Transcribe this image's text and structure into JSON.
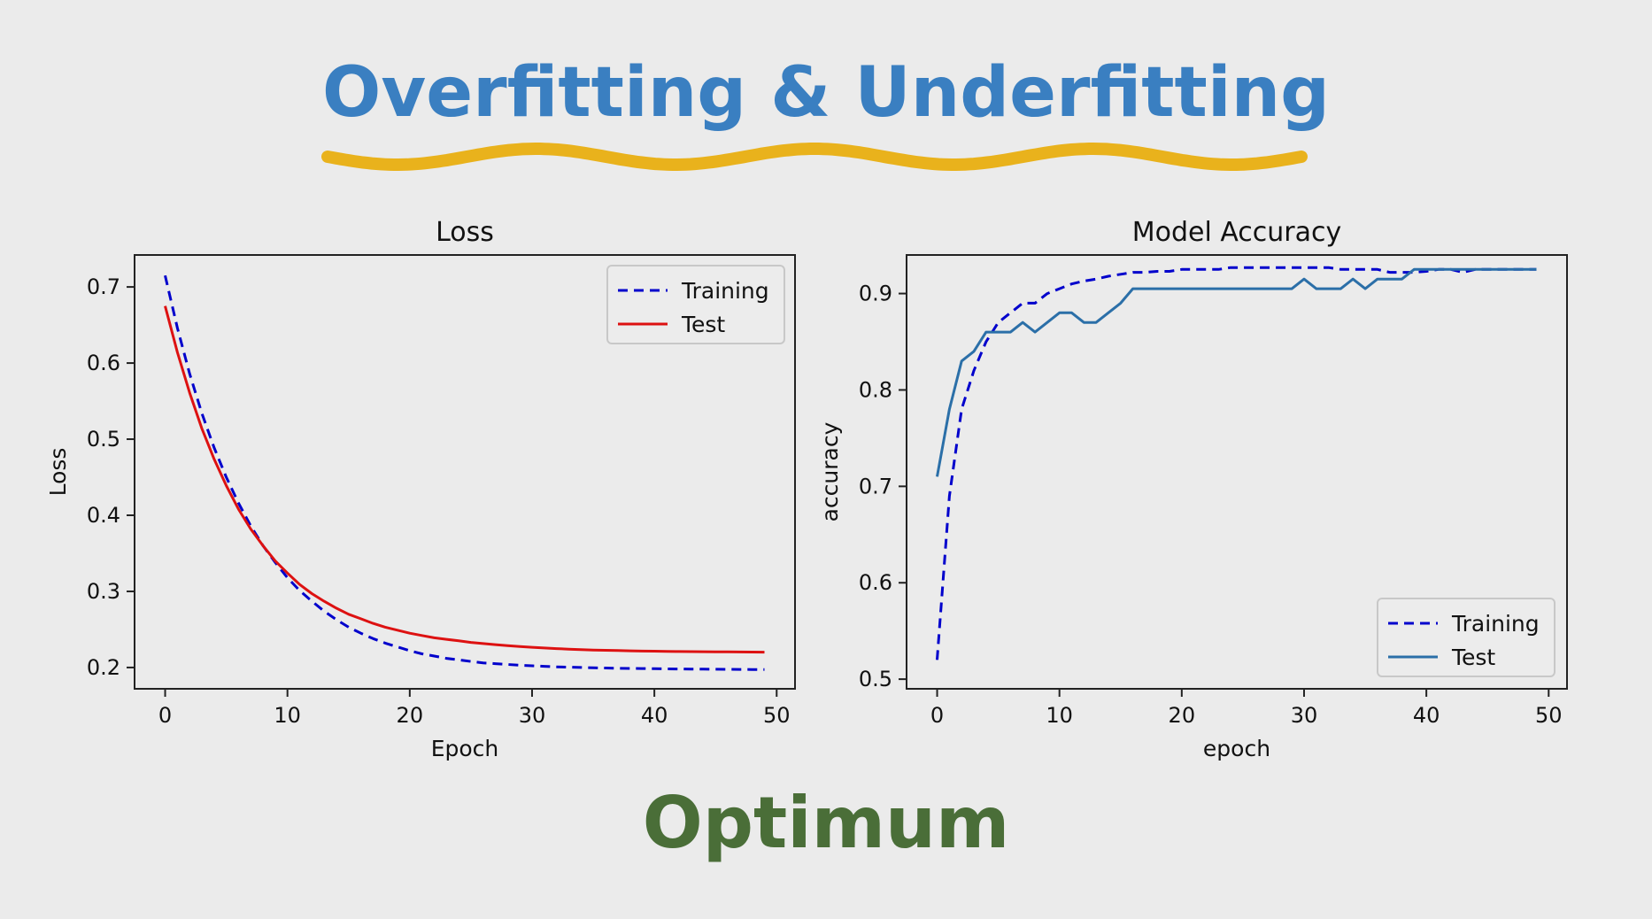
{
  "slide": {
    "title": "Overfitting & Underfitting",
    "footer": "Optimum",
    "colors": {
      "title": "#3a7fc1",
      "wave": "#e9b21c",
      "footer": "#4a6e38",
      "background": "#ebebeb"
    }
  },
  "chart_data": [
    {
      "type": "line",
      "title": "Loss",
      "xlabel": "Epoch",
      "ylabel": "Loss",
      "xlim": [
        -2.5,
        51.5
      ],
      "ylim": [
        0.172,
        0.742
      ],
      "xticks": [
        0,
        10,
        20,
        30,
        40,
        50
      ],
      "yticks": [
        0.2,
        0.3,
        0.4,
        0.5,
        0.6,
        0.7
      ],
      "grid": false,
      "legend": "top-right",
      "x": [
        0,
        1,
        2,
        3,
        4,
        5,
        6,
        7,
        8,
        9,
        10,
        11,
        12,
        13,
        14,
        15,
        16,
        17,
        18,
        19,
        20,
        21,
        22,
        23,
        24,
        25,
        26,
        27,
        28,
        29,
        30,
        31,
        32,
        33,
        34,
        35,
        36,
        37,
        38,
        39,
        40,
        41,
        42,
        43,
        44,
        45,
        46,
        47,
        48,
        49
      ],
      "series": [
        {
          "name": "Training",
          "style": "dashed",
          "color": "#0000cc",
          "values": [
            0.715,
            0.646,
            0.586,
            0.534,
            0.489,
            0.45,
            0.416,
            0.386,
            0.36,
            0.338,
            0.318,
            0.301,
            0.287,
            0.274,
            0.263,
            0.253,
            0.245,
            0.238,
            0.232,
            0.227,
            0.222,
            0.218,
            0.215,
            0.212,
            0.21,
            0.208,
            0.206,
            0.205,
            0.204,
            0.203,
            0.2022,
            0.2015,
            0.2009,
            0.2004,
            0.2,
            0.1996,
            0.1993,
            0.199,
            0.1988,
            0.1986,
            0.1984,
            0.1982,
            0.1981,
            0.1979,
            0.1978,
            0.1977,
            0.1976,
            0.1975,
            0.1974,
            0.1973
          ]
        },
        {
          "name": "Test",
          "style": "solid",
          "color": "#dd1111",
          "values": [
            0.675,
            0.614,
            0.561,
            0.514,
            0.474,
            0.439,
            0.408,
            0.382,
            0.36,
            0.34,
            0.324,
            0.309,
            0.297,
            0.287,
            0.278,
            0.27,
            0.264,
            0.258,
            0.253,
            0.249,
            0.245,
            0.242,
            0.239,
            0.237,
            0.235,
            0.233,
            0.2315,
            0.23,
            0.2287,
            0.2275,
            0.2265,
            0.2256,
            0.2248,
            0.2241,
            0.2235,
            0.223,
            0.2226,
            0.2222,
            0.2219,
            0.2216,
            0.2214,
            0.2212,
            0.221,
            0.2208,
            0.2207,
            0.2206,
            0.2205,
            0.2204,
            0.2203,
            0.2202
          ]
        }
      ]
    },
    {
      "type": "line",
      "title": "Model Accuracy",
      "xlabel": "epoch",
      "ylabel": "accuracy",
      "xlim": [
        -2.5,
        51.5
      ],
      "ylim": [
        0.49,
        0.94
      ],
      "xticks": [
        0,
        10,
        20,
        30,
        40,
        50
      ],
      "yticks": [
        0.5,
        0.6,
        0.7,
        0.8,
        0.9
      ],
      "grid": false,
      "legend": "bottom-right",
      "x": [
        0,
        1,
        2,
        3,
        4,
        5,
        6,
        7,
        8,
        9,
        10,
        11,
        12,
        13,
        14,
        15,
        16,
        17,
        18,
        19,
        20,
        21,
        22,
        23,
        24,
        25,
        26,
        27,
        28,
        29,
        30,
        31,
        32,
        33,
        34,
        35,
        36,
        37,
        38,
        39,
        40,
        41,
        42,
        43,
        44,
        45,
        46,
        47,
        48,
        49
      ],
      "series": [
        {
          "name": "Training",
          "style": "dashed",
          "color": "#0000cc",
          "values": [
            0.52,
            0.69,
            0.78,
            0.82,
            0.85,
            0.87,
            0.88,
            0.89,
            0.89,
            0.9,
            0.905,
            0.91,
            0.913,
            0.915,
            0.918,
            0.92,
            0.922,
            0.922,
            0.923,
            0.923,
            0.925,
            0.925,
            0.925,
            0.925,
            0.927,
            0.927,
            0.927,
            0.927,
            0.927,
            0.927,
            0.927,
            0.927,
            0.927,
            0.925,
            0.925,
            0.925,
            0.925,
            0.922,
            0.922,
            0.922,
            0.923,
            0.925,
            0.925,
            0.922,
            0.925,
            0.925,
            0.925,
            0.925,
            0.925,
            0.925
          ]
        },
        {
          "name": "Test",
          "style": "solid",
          "color": "#2b6fa8",
          "values": [
            0.71,
            0.78,
            0.83,
            0.84,
            0.86,
            0.86,
            0.86,
            0.87,
            0.86,
            0.87,
            0.88,
            0.88,
            0.87,
            0.87,
            0.88,
            0.89,
            0.905,
            0.905,
            0.905,
            0.905,
            0.905,
            0.905,
            0.905,
            0.905,
            0.905,
            0.905,
            0.905,
            0.905,
            0.905,
            0.905,
            0.915,
            0.905,
            0.905,
            0.905,
            0.915,
            0.905,
            0.915,
            0.915,
            0.915,
            0.925,
            0.925,
            0.925,
            0.925,
            0.925,
            0.925,
            0.925,
            0.925,
            0.925,
            0.925,
            0.925
          ]
        }
      ]
    }
  ]
}
